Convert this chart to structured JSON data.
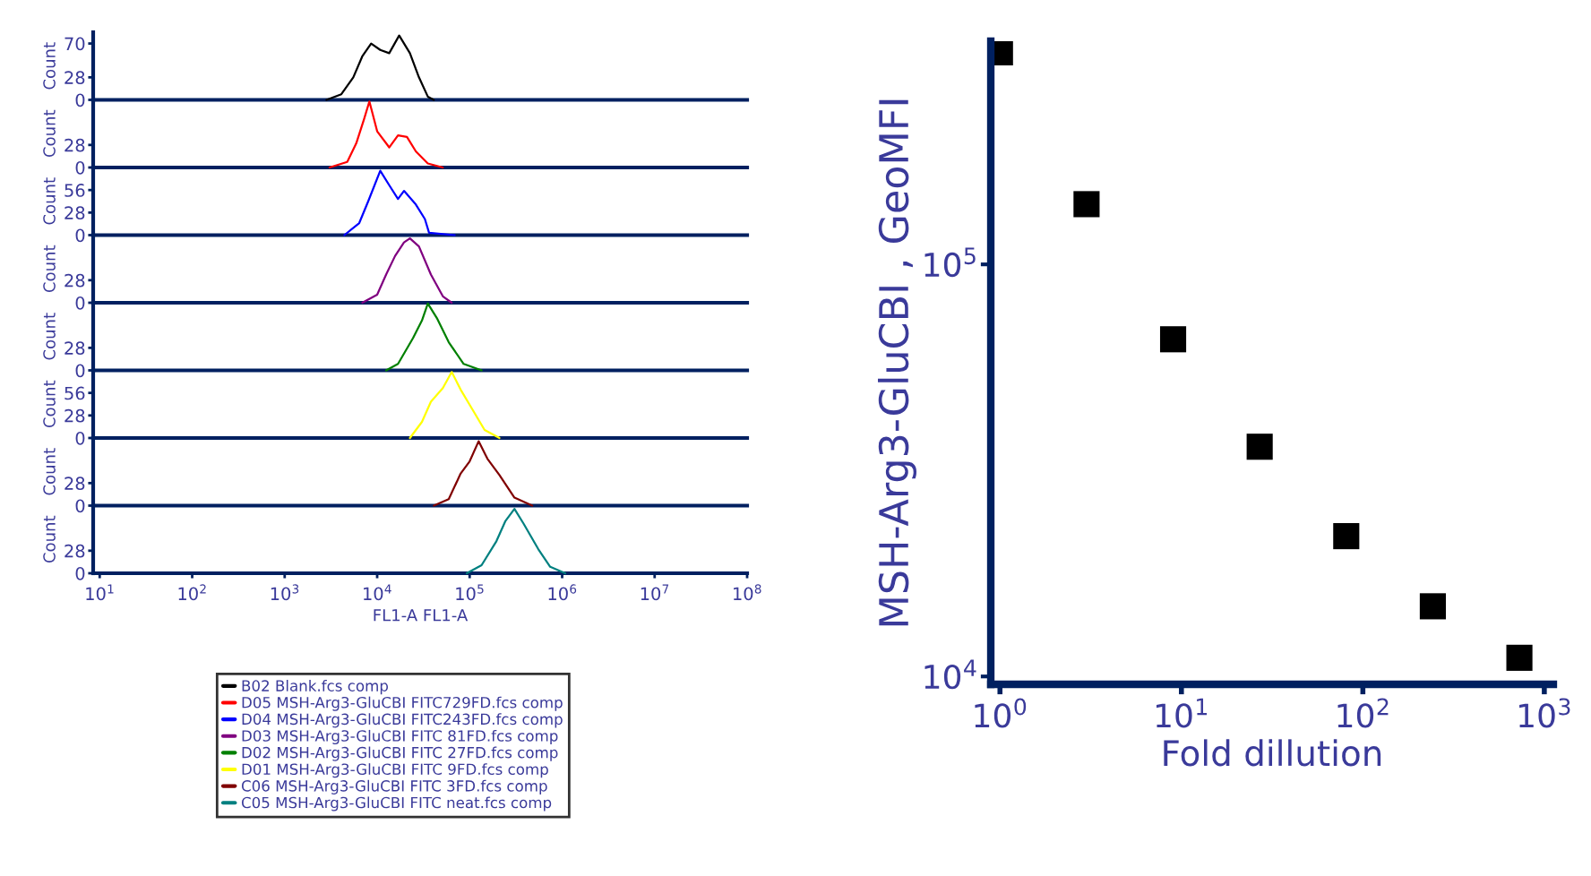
{
  "chart_data": [
    {
      "type": "line",
      "ylabel": "Count",
      "log": "x",
      "xlim": [
        8.5,
        100000000
      ],
      "ylim": [
        0,
        84
      ],
      "yticks": [
        0,
        28,
        70
      ],
      "tick_labels": "y",
      "legend": "bottom",
      "marker": "none",
      "series": [
        {
          "name": "B02 Blank.fcs comp",
          "color": "#000000",
          "x": [
            2830,
            4100,
            5520,
            6900,
            8610,
            10800,
            13500,
            17300,
            22600,
            28300,
            35300,
            41000
          ],
          "values": [
            0,
            7,
            28,
            54,
            70,
            62,
            58,
            80,
            58,
            28,
            4,
            0
          ]
        }
      ]
    },
    {
      "type": "line",
      "ylabel": "Count",
      "log": "x",
      "xlim": [
        8.5,
        100000000
      ],
      "ylim": [
        0,
        84
      ],
      "yticks": [
        0,
        28
      ],
      "tick_labels": "y",
      "legend": "bottom",
      "marker": "none",
      "series": [
        {
          "name": "D05 MSH-Arg3-GluCBI FITC729FD.fcs comp",
          "color": "#ff0000",
          "x": [
            3050,
            4750,
            5940,
            7210,
            8240,
            10000,
            13500,
            16800,
            21000,
            26200,
            35300,
            51300
          ],
          "values": [
            0,
            7,
            30,
            60,
            82,
            45,
            25,
            40,
            38,
            20,
            5,
            0
          ]
        }
      ]
    },
    {
      "type": "line",
      "ylabel": "Count",
      "log": "x",
      "xlim": [
        8.5,
        100000000
      ],
      "ylim": [
        0,
        84
      ],
      "yticks": [
        0,
        28,
        56
      ],
      "tick_labels": "y",
      "legend": "bottom",
      "marker": "none",
      "series": [
        {
          "name": "D04 MSH-Arg3-GluCBI FITC243FD.fcs comp",
          "color": "#0000ff",
          "x": [
            4420,
            6400,
            8000,
            10800,
            13500,
            16800,
            19500,
            26200,
            32800,
            36400,
            69000
          ],
          "values": [
            0,
            15,
            42,
            80,
            62,
            45,
            55,
            38,
            20,
            3,
            0
          ]
        }
      ]
    },
    {
      "type": "line",
      "ylabel": "Count",
      "log": "x",
      "xlim": [
        8.5,
        100000000
      ],
      "ylim": [
        0,
        84
      ],
      "yticks": [
        0,
        28
      ],
      "tick_labels": "y",
      "legend": "bottom",
      "marker": "none",
      "series": [
        {
          "name": "D03 MSH-Arg3-GluCBI FITC 81FD.fcs comp",
          "color": "#800080",
          "x": [
            6900,
            10000,
            12500,
            15600,
            19500,
            22600,
            28300,
            38100,
            51300,
            64000
          ],
          "values": [
            0,
            10,
            35,
            58,
            75,
            80,
            70,
            35,
            8,
            0
          ]
        }
      ]
    },
    {
      "type": "line",
      "ylabel": "Count",
      "log": "x",
      "xlim": [
        8.5,
        100000000
      ],
      "ylim": [
        0,
        84
      ],
      "yticks": [
        0,
        28
      ],
      "tick_labels": "y",
      "legend": "bottom",
      "marker": "none",
      "series": [
        {
          "name": "D02 MSH-Arg3-GluCBI FITC 27FD.fcs comp",
          "color": "#008000",
          "x": [
            12500,
            16800,
            24400,
            30500,
            35300,
            44200,
            59400,
            86100,
            134600
          ],
          "values": [
            0,
            8,
            40,
            62,
            83,
            65,
            35,
            8,
            0
          ]
        }
      ]
    },
    {
      "type": "line",
      "ylabel": "Count",
      "log": "x",
      "xlim": [
        8.5,
        100000000
      ],
      "ylim": [
        0,
        84
      ],
      "yticks": [
        0,
        28,
        56
      ],
      "tick_labels": "y",
      "legend": "bottom",
      "marker": "none",
      "series": [
        {
          "name": "D01 MSH-Arg3-GluCBI FITC 9FD.fcs comp",
          "color": "#ffff00",
          "x": [
            22600,
            30500,
            38100,
            51300,
            64000,
            80000,
            107700,
            145000,
            210000
          ],
          "values": [
            0,
            20,
            45,
            62,
            82,
            60,
            35,
            10,
            0
          ]
        }
      ]
    },
    {
      "type": "line",
      "ylabel": "Count",
      "log": "x",
      "xlim": [
        8.5,
        100000000
      ],
      "ylim": [
        0,
        84
      ],
      "yticks": [
        0,
        28
      ],
      "tick_labels": "y",
      "legend": "bottom",
      "marker": "none",
      "series": [
        {
          "name": "C06 MSH-Arg3-GluCBI FITC 3FD.fcs comp",
          "color": "#800000",
          "x": [
            41000,
            59400,
            80000,
            100000,
            125000,
            156000,
            210000,
            305000,
            475000
          ],
          "values": [
            0,
            8,
            40,
            55,
            80,
            58,
            38,
            10,
            0
          ]
        }
      ]
    },
    {
      "type": "line",
      "ylabel": "Count",
      "xlabel": "FL1-A FL1-A",
      "log": "x",
      "xlim": [
        8.5,
        100000000
      ],
      "xticks": [
        {
          "value": 10,
          "label": "10$^{1}$"
        },
        {
          "value": 100,
          "label": "10$^{2}$"
        },
        {
          "value": 1000,
          "label": "10$^{3}$"
        },
        {
          "value": 10000,
          "label": "10$^{4}$"
        },
        {
          "value": 100000,
          "label": "10$^{5}$"
        },
        {
          "value": 1000000,
          "label": "10$^{6}$"
        },
        {
          "value": 10000000,
          "label": "10$^{7}$"
        },
        {
          "value": 100000000,
          "label": "10$^{8}$"
        }
      ],
      "ylim": [
        0,
        84
      ],
      "yticks": [
        0,
        28
      ],
      "legend": "bottom",
      "marker": "none",
      "series": [
        {
          "name": "C05 MSH-Arg3-GluCBI FITC neat.fcs comp",
          "color": "#008080",
          "x": [
            93000,
            134600,
            195000,
            244000,
            305000,
            381000,
            552000,
            743000,
            1080000
          ],
          "values": [
            0,
            10,
            40,
            65,
            80,
            62,
            30,
            8,
            0
          ]
        }
      ]
    },
    {
      "type": "scatter",
      "xlabel": "Fold dillution",
      "ylabel": "MSH-Arg3-GluCBI , GeoMFI",
      "log": "xy",
      "xlim": [
        0.89,
        1122
      ],
      "ylim": [
        9570,
        348000
      ],
      "xticks": [
        {
          "value": 1,
          "label": "10$^{0}$"
        },
        {
          "value": 10,
          "label": "10$^{1}$"
        },
        {
          "value": 100,
          "label": "10$^{2}$"
        },
        {
          "value": 1000,
          "label": "10$^{3}$"
        }
      ],
      "yticks": [
        {
          "value": 10000,
          "label": "10$^{4}$"
        },
        {
          "value": 100000,
          "label": "10$^{5}$"
        }
      ],
      "marker": "square",
      "series": [
        {
          "color": "#000000",
          "x": [
            1,
            3,
            9,
            27,
            81,
            243,
            729
          ],
          "values": [
            327000,
            140000,
            65800,
            36100,
            21900,
            14800,
            11100
          ]
        }
      ]
    }
  ]
}
